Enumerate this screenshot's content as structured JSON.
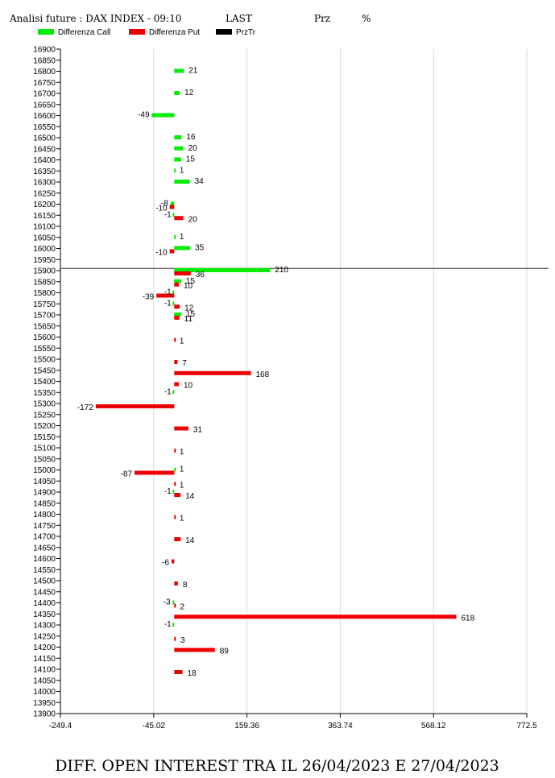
{
  "header": {
    "title": "Analisi future : DAX INDEX - 09:10",
    "last_label": "LAST",
    "prz_label": "Prz",
    "pct_label": "%"
  },
  "legend": [
    {
      "label": "Differenza Call",
      "color": "#00ee00"
    },
    {
      "label": "Differenza Put",
      "color": "#ee0000"
    },
    {
      "label": "PrzTr",
      "color": "#000000"
    }
  ],
  "caption": "DIFF. OPEN INTEREST TRA IL 26/04/2023 E 27/04/2023",
  "chart_data": {
    "type": "bar",
    "orientation": "horizontal",
    "y_ticks": [
      16900,
      16850,
      16800,
      16750,
      16700,
      16650,
      16600,
      16550,
      16500,
      16450,
      16400,
      16350,
      16300,
      16250,
      16200,
      16150,
      16100,
      16050,
      16000,
      15950,
      15900,
      15850,
      15800,
      15750,
      15700,
      15650,
      15600,
      15550,
      15500,
      15450,
      15400,
      15350,
      15300,
      15250,
      15200,
      15150,
      15100,
      15050,
      15000,
      14950,
      14900,
      14850,
      14800,
      14750,
      14700,
      14650,
      14600,
      14550,
      14500,
      14450,
      14400,
      14350,
      14300,
      14250,
      14200,
      14150,
      14100,
      14050,
      14000,
      13950,
      13900
    ],
    "x_ticks": [
      "-249.4",
      "-45.02",
      "159.36",
      "363.74",
      "568.12",
      "772.5"
    ],
    "xlim": [
      -249.4,
      772.5
    ],
    "ylim": [
      13900,
      16900
    ],
    "grid": "vertical",
    "price_line": 15910,
    "series": [
      {
        "name": "Differenza Call",
        "color": "#00ee00",
        "points": [
          {
            "strike": 16800,
            "value": 21
          },
          {
            "strike": 16700,
            "value": 12
          },
          {
            "strike": 16600,
            "value": -49
          },
          {
            "strike": 16500,
            "value": 16
          },
          {
            "strike": 16450,
            "value": 20
          },
          {
            "strike": 16400,
            "value": 15
          },
          {
            "strike": 16350,
            "value": 1
          },
          {
            "strike": 16300,
            "value": 34
          },
          {
            "strike": 16200,
            "value": -8
          },
          {
            "strike": 16150,
            "value": -1
          },
          {
            "strike": 16050,
            "value": 1
          },
          {
            "strike": 16000,
            "value": 35
          },
          {
            "strike": 15900,
            "value": 210
          },
          {
            "strike": 15850,
            "value": 15
          },
          {
            "strike": 15800,
            "value": -1
          },
          {
            "strike": 15750,
            "value": -1
          },
          {
            "strike": 15700,
            "value": 15
          },
          {
            "strike": 15350,
            "value": -1
          },
          {
            "strike": 15000,
            "value": 1
          },
          {
            "strike": 14900,
            "value": -1
          },
          {
            "strike": 14400,
            "value": -3
          },
          {
            "strike": 14300,
            "value": -1
          }
        ]
      },
      {
        "name": "Differenza Put",
        "color": "#ee0000",
        "points": [
          {
            "strike": 16200,
            "value": -10
          },
          {
            "strike": 16150,
            "value": 20
          },
          {
            "strike": 16000,
            "value": -10
          },
          {
            "strike": 15900,
            "value": 36
          },
          {
            "strike": 15850,
            "value": 10
          },
          {
            "strike": 15800,
            "value": -39
          },
          {
            "strike": 15750,
            "value": 12
          },
          {
            "strike": 15700,
            "value": 11
          },
          {
            "strike": 15600,
            "value": 1
          },
          {
            "strike": 15500,
            "value": 7
          },
          {
            "strike": 15450,
            "value": 168
          },
          {
            "strike": 15400,
            "value": 10
          },
          {
            "strike": 15300,
            "value": -172
          },
          {
            "strike": 15200,
            "value": 31
          },
          {
            "strike": 15100,
            "value": 1
          },
          {
            "strike": 15000,
            "value": -87
          },
          {
            "strike": 14950,
            "value": 1
          },
          {
            "strike": 14900,
            "value": 14
          },
          {
            "strike": 14800,
            "value": 1
          },
          {
            "strike": 14700,
            "value": 14
          },
          {
            "strike": 14600,
            "value": -6
          },
          {
            "strike": 14500,
            "value": 8
          },
          {
            "strike": 14400,
            "value": 2
          },
          {
            "strike": 14350,
            "value": 618
          },
          {
            "strike": 14250,
            "value": 3
          },
          {
            "strike": 14200,
            "value": 89
          },
          {
            "strike": 14100,
            "value": 18
          }
        ]
      }
    ]
  }
}
